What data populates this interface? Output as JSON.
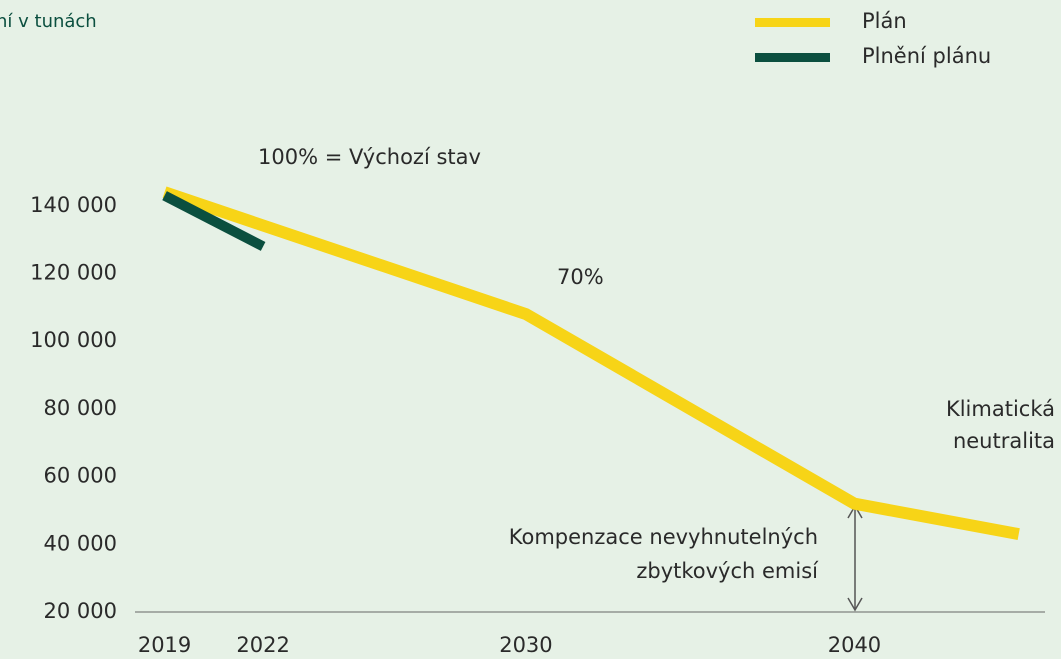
{
  "chart_data": {
    "type": "line",
    "subtitle": "ní v tunách",
    "annotations": [
      "100% = Výchozí stav",
      "70%",
      "Klimatická",
      "neutralita",
      "Kompenzace nevyhnutelných",
      "zbytkových emisí"
    ],
    "series": [
      {
        "name": "Plán",
        "color": "#f7d417",
        "x": [
          2019,
          2030,
          2040,
          2045
        ],
        "values": [
          144000,
          108000,
          52000,
          43000
        ]
      },
      {
        "name": "Plnění plánu",
        "color": "#0b4f3f",
        "x": [
          2019,
          2022
        ],
        "values": [
          143000,
          128000
        ]
      }
    ],
    "xlim": [
      2018.1,
      2045.8
    ],
    "xticks": [
      2019,
      2022,
      2030,
      2040
    ],
    "ylim": [
      20000,
      155000
    ],
    "yticks": [
      {
        "value": 20000,
        "label": "20 000"
      },
      {
        "value": 40000,
        "label": "40 000"
      },
      {
        "value": 60000,
        "label": "60 000"
      },
      {
        "value": 80000,
        "label": "80 000"
      },
      {
        "value": 100000,
        "label": "100 000"
      },
      {
        "value": 120000,
        "label": "120 000"
      },
      {
        "value": 140000,
        "label": "140 000"
      }
    ],
    "legend": "top-right"
  }
}
